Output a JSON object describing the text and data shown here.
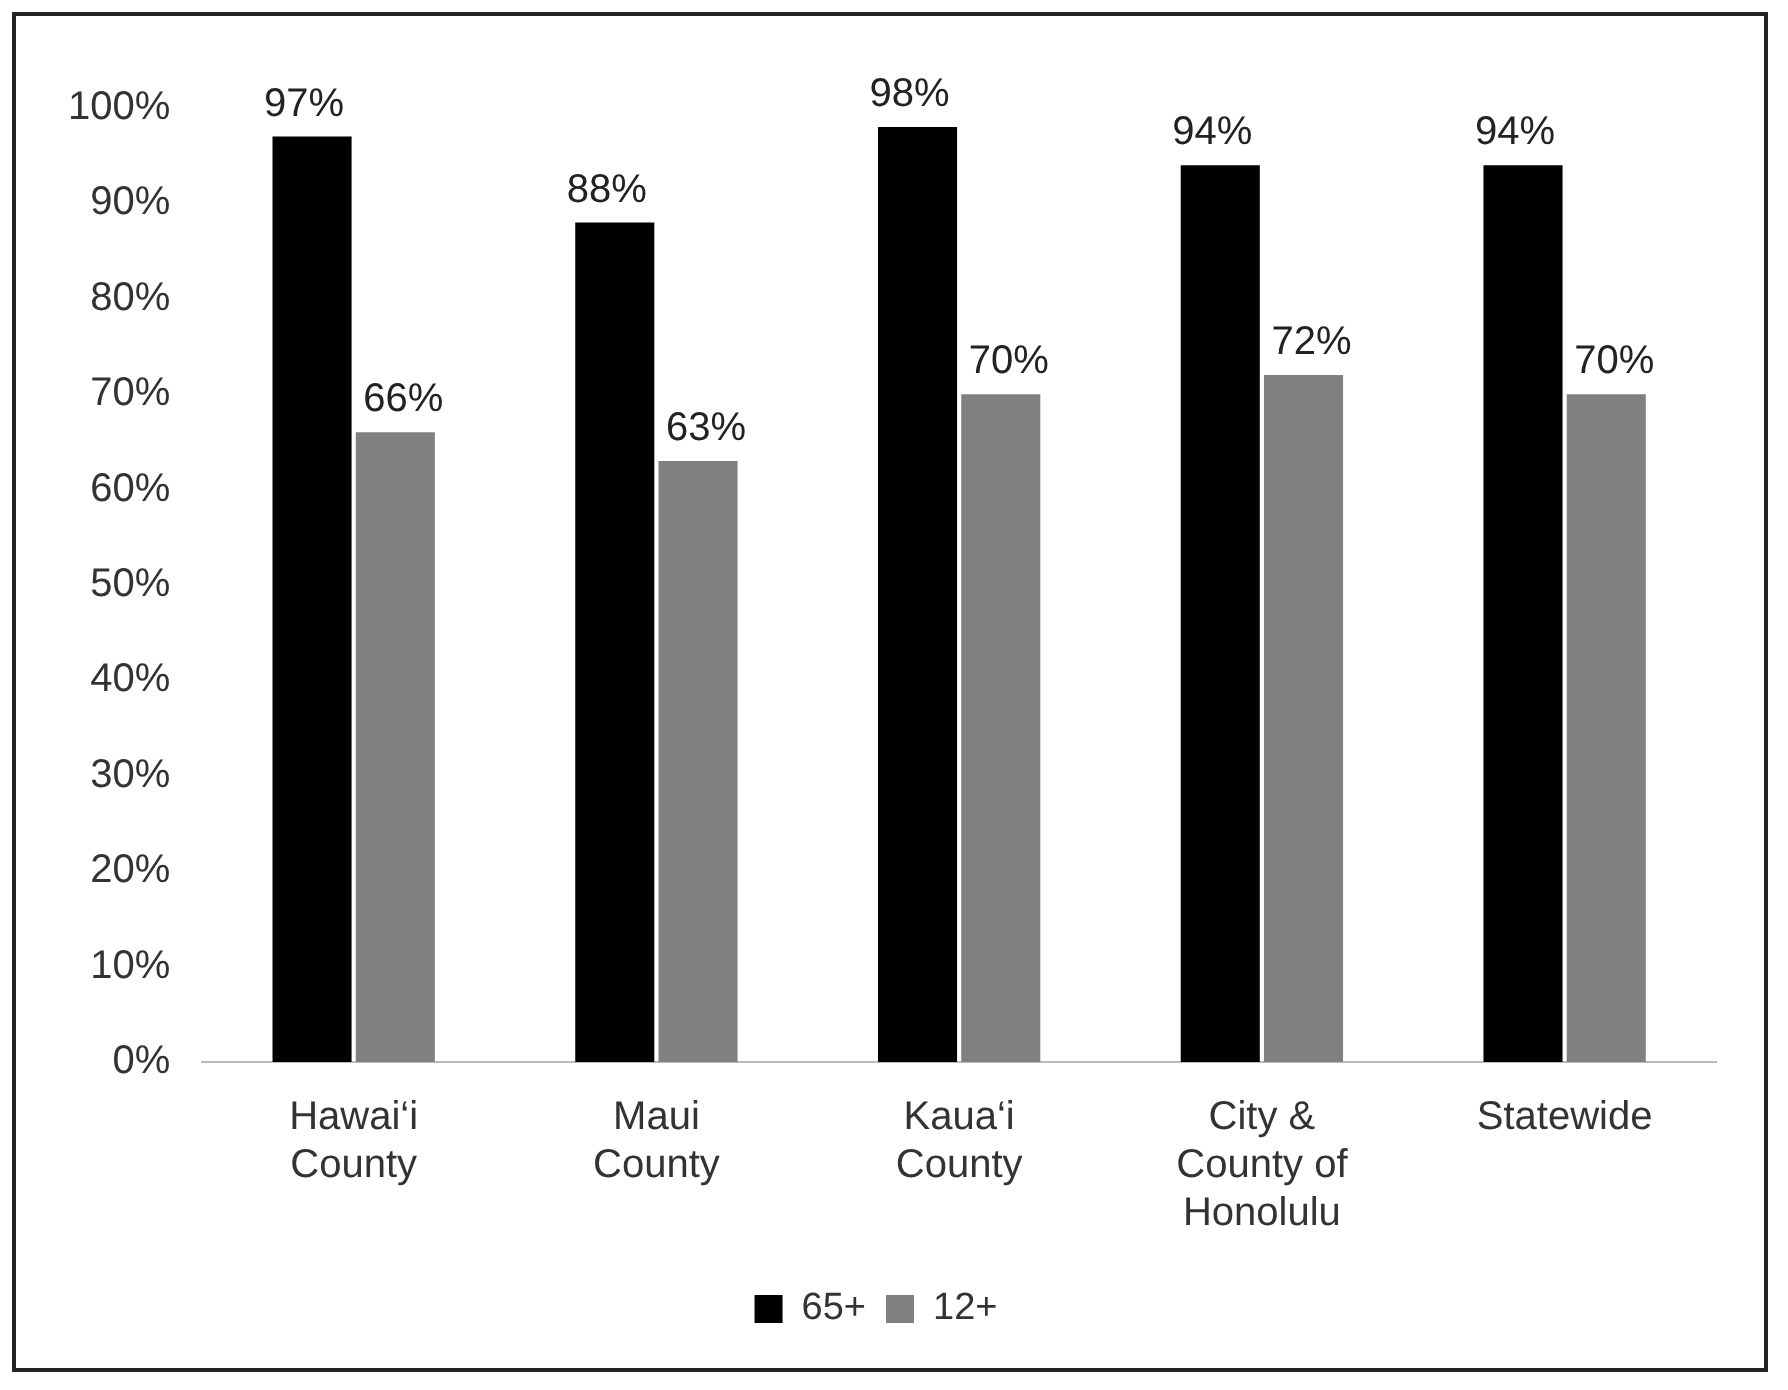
{
  "chart_data": {
    "type": "bar",
    "categories": [
      "Hawai‘i County",
      "Maui County",
      "Kaua‘i County",
      "City & County of Honolulu",
      "Statewide"
    ],
    "series": [
      {
        "name": "65+",
        "color": "#000000",
        "values": [
          97,
          88,
          98,
          94,
          94
        ],
        "value_labels": [
          "97%",
          "88%",
          "98%",
          "94%",
          "94%"
        ]
      },
      {
        "name": "12+",
        "color": "#808080",
        "values": [
          66,
          63,
          70,
          72,
          70
        ],
        "value_labels": [
          "66%",
          "63%",
          "70%",
          "72%",
          "70%"
        ]
      }
    ],
    "ylim": [
      0,
      100
    ],
    "yticks": [
      {
        "value": 0,
        "label": "0%"
      },
      {
        "value": 10,
        "label": "10%"
      },
      {
        "value": 20,
        "label": "20%"
      },
      {
        "value": 30,
        "label": "30%"
      },
      {
        "value": 40,
        "label": "40%"
      },
      {
        "value": 50,
        "label": "50%"
      },
      {
        "value": 60,
        "label": "60%"
      },
      {
        "value": 70,
        "label": "70%"
      },
      {
        "value": 80,
        "label": "80%"
      },
      {
        "value": 90,
        "label": "90%"
      },
      {
        "value": 100,
        "label": "100%"
      }
    ],
    "grid": false,
    "legend": "bottom"
  }
}
